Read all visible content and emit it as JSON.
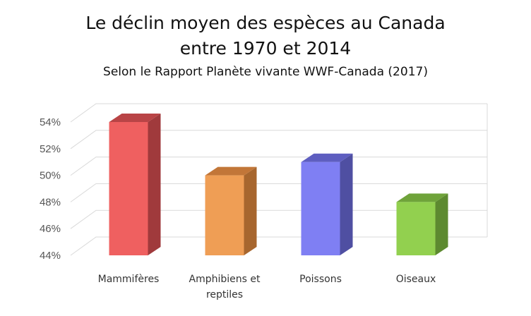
{
  "header": {
    "title_line1": "Le déclin moyen des espèces au Canada",
    "title_line2": "entre 1970 et 2014",
    "subtitle": "Selon le Rapport Planète vivante WWF-Canada (2017)"
  },
  "chart_data": {
    "type": "bar",
    "style": "3d-column",
    "categories": [
      [
        "Mammifères"
      ],
      [
        "Amphibiens et",
        "reptiles"
      ],
      [
        "Poissons"
      ],
      [
        "Oiseaux"
      ]
    ],
    "values": [
      54,
      50,
      51,
      48
    ],
    "unit": "%",
    "ylim": [
      44,
      54
    ],
    "yticks": [
      "44%",
      "46%",
      "48%",
      "50%",
      "52%",
      "54%"
    ],
    "grid": true,
    "legend": "none",
    "colors": [
      {
        "front": "#ef6060",
        "side": "#a03a3c",
        "top": "#b94446"
      },
      {
        "front": "#ef9e55",
        "side": "#a7662e",
        "top": "#c27638"
      },
      {
        "front": "#7f7ff3",
        "side": "#4f4fa2",
        "top": "#5e5ec0"
      },
      {
        "front": "#92d04f",
        "side": "#5d8a30",
        "top": "#6fa33a"
      }
    ]
  }
}
